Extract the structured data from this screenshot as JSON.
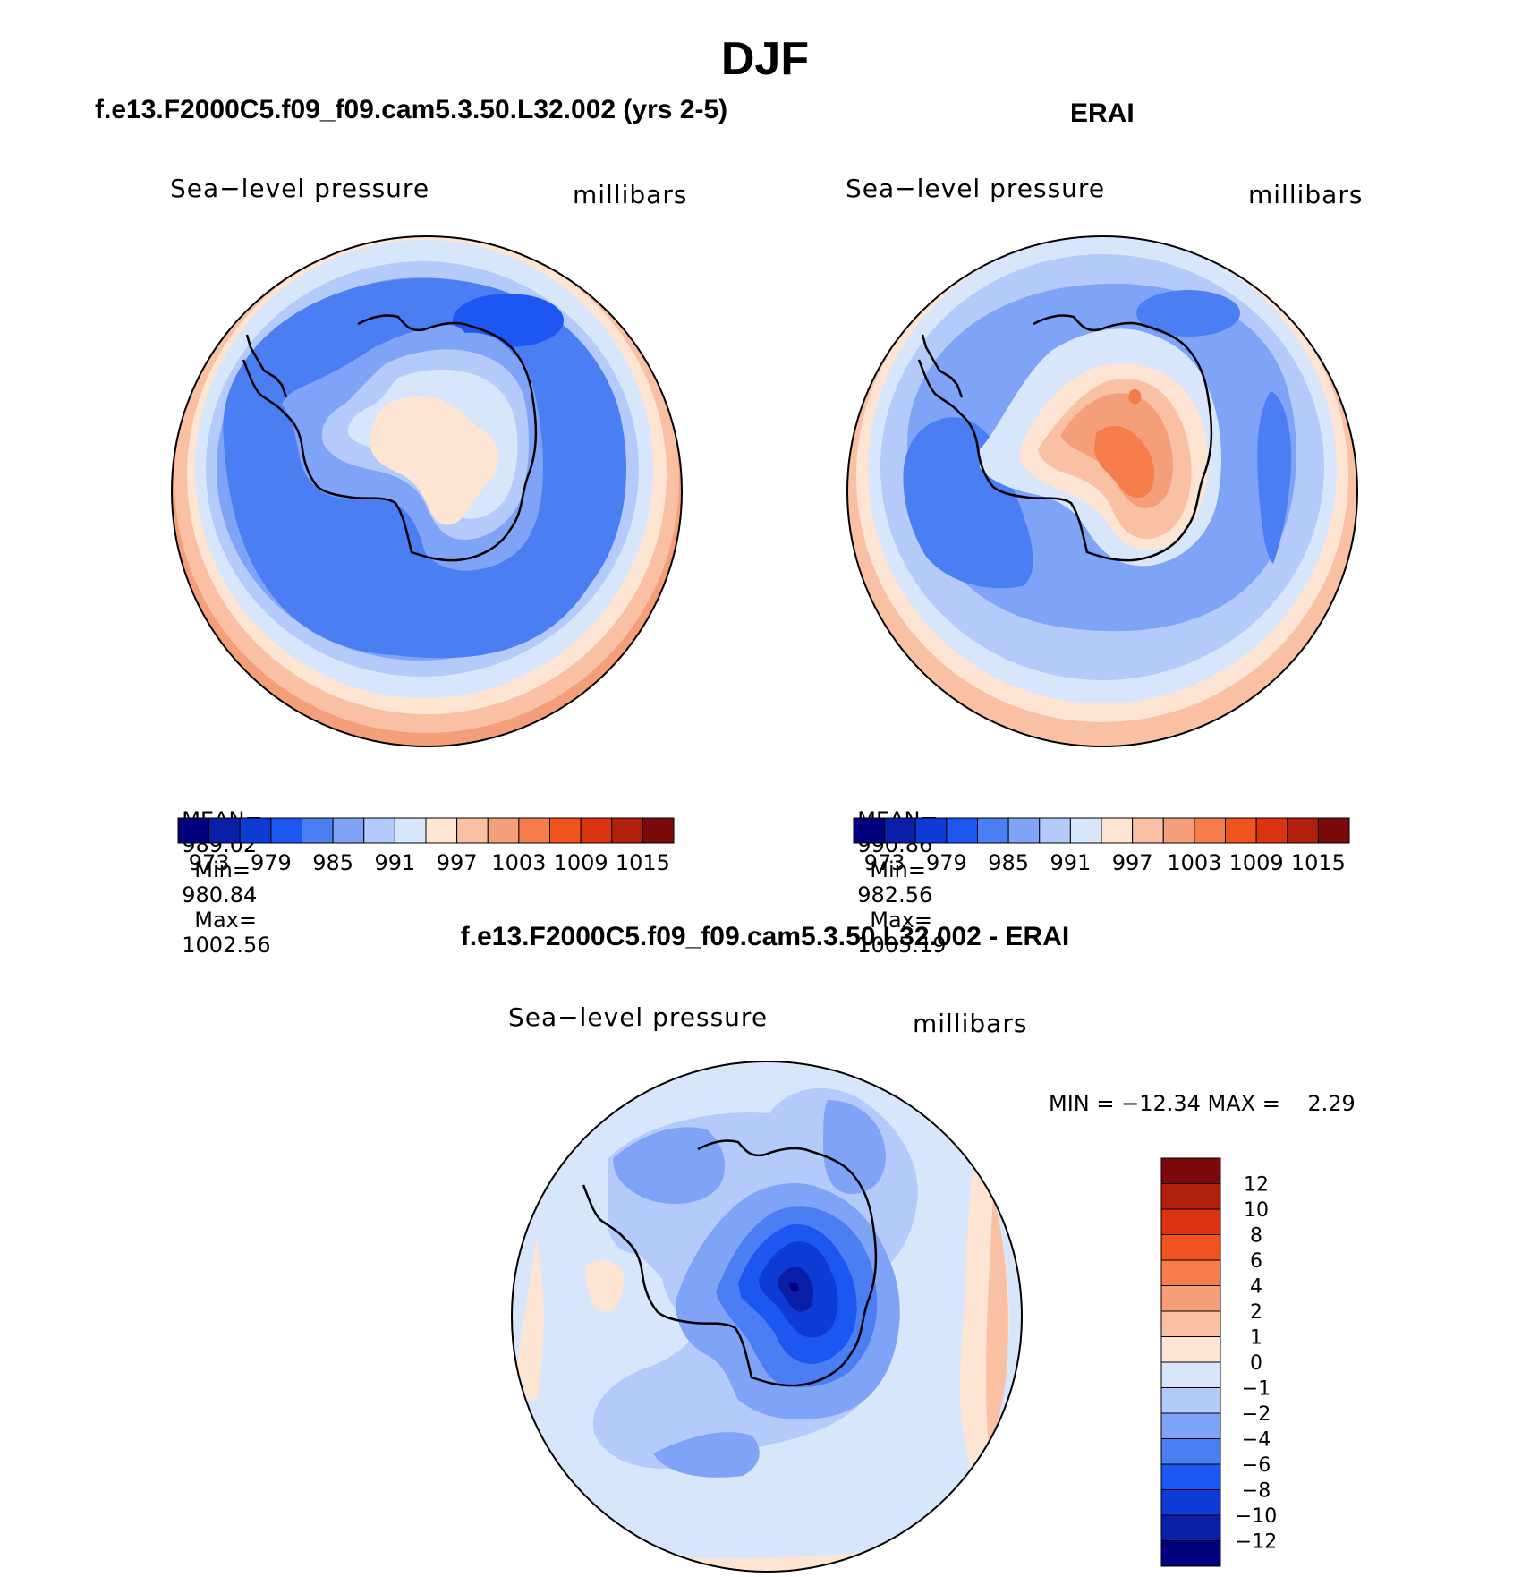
{
  "figure": {
    "season": "DJF",
    "variable_label": "Sea−level pressure",
    "units_label": "millibars"
  },
  "panels": [
    {
      "id": "model",
      "title": "f.e13.F2000C5.f09_f09.cam5.3.50.L32.002 (yrs 2-5)",
      "mean_label": "MEAN=",
      "mean": "989.02",
      "min_label": "Min=",
      "min": "980.84",
      "max_label": "Max=",
      "max": "1002.56"
    },
    {
      "id": "obs",
      "title": "ERAI",
      "mean_label": "MEAN=",
      "mean": "990.86",
      "min_label": "Min=",
      "min": "982.56",
      "max_label": "Max=",
      "max": "1005.19"
    }
  ],
  "difference": {
    "title": "f.e13.F2000C5.f09_f09.cam5.3.50.L32.002 - ERAI",
    "minmax_text": "MIN = −12.34 MAX =    2.29"
  },
  "colors": {
    "abs_palette": [
      "#00007f",
      "#0a1fa8",
      "#0e3ad6",
      "#1b57f0",
      "#4a7ef2",
      "#7fa4f7",
      "#b3cafa",
      "#d8e6fb",
      "#fde4d3",
      "#f9c0a4",
      "#f49e7a",
      "#f47d4a",
      "#f0531e",
      "#dc3410",
      "#b11e0b",
      "#7c0a0a"
    ],
    "diff_palette": [
      "#00007f",
      "#0a1fa8",
      "#0e3ad6",
      "#1b57f0",
      "#4a7ef2",
      "#7fa4f7",
      "#b3cafa",
      "#d8e6fb",
      "#fde4d3",
      "#f9c0a4",
      "#f49e7a",
      "#f47d4a",
      "#f0531e",
      "#dc3410",
      "#b11e0b",
      "#7c0a0a"
    ]
  },
  "chart_data": [
    {
      "type": "heatmap",
      "projection": "south-polar-stereographic",
      "title": "f.e13.F2000C5.f09_f09.cam5.3.50.L32.002 (yrs 2-5)",
      "variable": "Sea-level pressure",
      "units": "millibars",
      "stats": {
        "mean": 989.02,
        "min": 980.84,
        "max": 1002.56
      },
      "colorbar": {
        "orientation": "horizontal",
        "tick_labels": [
          "973",
          "979",
          "985",
          "991",
          "997",
          "1003",
          "1009",
          "1015"
        ],
        "levels": [
          970,
          973,
          976,
          979,
          982,
          985,
          988,
          991,
          994,
          997,
          1000,
          1003,
          1006,
          1009,
          1012,
          1015,
          1018
        ]
      }
    },
    {
      "type": "heatmap",
      "projection": "south-polar-stereographic",
      "title": "ERAI",
      "variable": "Sea-level pressure",
      "units": "millibars",
      "stats": {
        "mean": 990.86,
        "min": 982.56,
        "max": 1005.19
      },
      "colorbar": {
        "orientation": "horizontal",
        "tick_labels": [
          "973",
          "979",
          "985",
          "991",
          "997",
          "1003",
          "1009",
          "1015"
        ],
        "levels": [
          970,
          973,
          976,
          979,
          982,
          985,
          988,
          991,
          994,
          997,
          1000,
          1003,
          1006,
          1009,
          1012,
          1015,
          1018
        ]
      }
    },
    {
      "type": "heatmap",
      "projection": "south-polar-stereographic",
      "title": "f.e13.F2000C5.f09_f09.cam5.3.50.L32.002 - ERAI",
      "variable": "Sea-level pressure",
      "units": "millibars",
      "stats": {
        "min": -12.34,
        "max": 2.29
      },
      "colorbar": {
        "orientation": "vertical",
        "tick_labels": [
          "12",
          "10",
          "8",
          "6",
          "4",
          "2",
          "1",
          "0",
          "−1",
          "−2",
          "−4",
          "−6",
          "−8",
          "−10",
          "−12"
        ],
        "levels": [
          12,
          10,
          8,
          6,
          4,
          2,
          1,
          0,
          -1,
          -2,
          -4,
          -6,
          -8,
          -10,
          -12
        ]
      }
    }
  ]
}
